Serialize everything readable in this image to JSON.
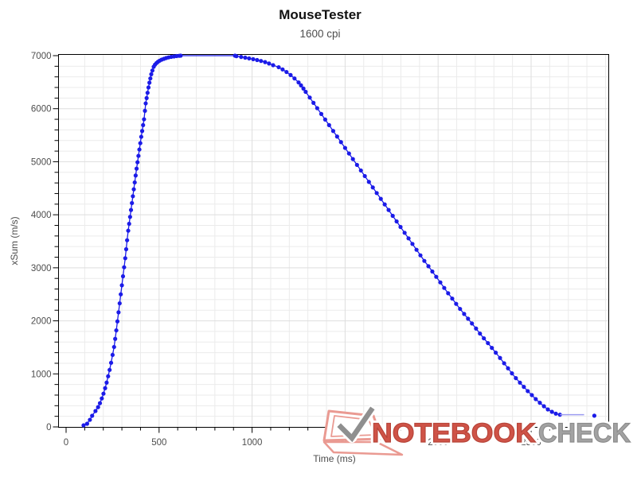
{
  "header": {
    "title": "MouseTester",
    "subtitle": "1600 cpi"
  },
  "watermark": {
    "brand_primary": "NOTEBOOK",
    "brand_secondary": "CHECK",
    "logo": "notebookcheck-laptop-checkmark-logo",
    "primary_color": "#cf5347",
    "primary_edge_color": "#b8453a",
    "secondary_color": "#a2a2a2",
    "secondary_edge_color": "#8c8c8c",
    "logo_outline_color": "#ea9a92",
    "checkmark_color": "#8f8f8f"
  },
  "chart_data": {
    "type": "line",
    "title": "MouseTester",
    "subtitle": "1600 cpi",
    "xlabel": "Time (ms)",
    "ylabel": "xSum (m/s)",
    "xlim": [
      0,
      2920
    ],
    "ylim": [
      0,
      7000
    ],
    "xticks_major": [
      0,
      500,
      1000,
      1500,
      2000,
      2500
    ],
    "xtick_minor_step": 100,
    "yticks_major": [
      0,
      1000,
      2000,
      3000,
      4000,
      5000,
      6000,
      7000
    ],
    "ytick_minor_step": 200,
    "grid": true,
    "legend": "none",
    "series_color": "#1b1be8",
    "tail_line_color": "#9b9bf0",
    "series": [
      {
        "name": "xSum",
        "style": "line+markers",
        "points": [
          [
            94,
            30
          ],
          [
            113,
            60
          ],
          [
            128,
            134
          ],
          [
            140,
            210
          ],
          [
            158,
            300
          ],
          [
            172,
            373
          ],
          [
            182,
            448
          ],
          [
            192,
            537
          ],
          [
            201,
            627
          ],
          [
            210,
            731
          ],
          [
            218,
            836
          ],
          [
            226,
            955
          ],
          [
            234,
            1075
          ],
          [
            242,
            1209
          ],
          [
            250,
            1358
          ],
          [
            258,
            1507
          ],
          [
            264,
            1660
          ],
          [
            270,
            1820
          ],
          [
            276,
            1990
          ],
          [
            282,
            2160
          ],
          [
            288,
            2330
          ],
          [
            294,
            2500
          ],
          [
            300,
            2670
          ],
          [
            306,
            2840
          ],
          [
            312,
            3010
          ],
          [
            318,
            3180
          ],
          [
            323,
            3350
          ],
          [
            328,
            3520
          ],
          [
            334,
            3700
          ],
          [
            339,
            3830
          ],
          [
            344,
            3960
          ],
          [
            349,
            4090
          ],
          [
            354,
            4220
          ],
          [
            359,
            4350
          ],
          [
            364,
            4480
          ],
          [
            369,
            4610
          ],
          [
            374,
            4740
          ],
          [
            379,
            4870
          ],
          [
            384,
            4990
          ],
          [
            389,
            5110
          ],
          [
            394,
            5230
          ],
          [
            399,
            5350
          ],
          [
            404,
            5470
          ],
          [
            409,
            5580
          ],
          [
            414,
            5690
          ],
          [
            419,
            5800
          ],
          [
            424,
            5960
          ],
          [
            428,
            6100
          ],
          [
            433,
            6200
          ],
          [
            438,
            6300
          ],
          [
            443,
            6400
          ],
          [
            448,
            6490
          ],
          [
            453,
            6570
          ],
          [
            458,
            6650
          ],
          [
            464,
            6720
          ],
          [
            471,
            6790
          ],
          [
            478,
            6830
          ],
          [
            486,
            6860
          ],
          [
            494,
            6885
          ],
          [
            503,
            6905
          ],
          [
            514,
            6925
          ],
          [
            526,
            6940
          ],
          [
            538,
            6955
          ],
          [
            551,
            6967
          ],
          [
            565,
            6977
          ],
          [
            580,
            6985
          ],
          [
            594,
            6992
          ],
          [
            608,
            6997
          ],
          [
            616,
            7000
          ],
          [
            908,
            7000
          ],
          [
            916,
            6990
          ],
          [
            941,
            6976
          ],
          [
            963,
            6962
          ],
          [
            984,
            6948
          ],
          [
            1006,
            6933
          ],
          [
            1027,
            6917
          ],
          [
            1048,
            6900
          ],
          [
            1070,
            6878
          ],
          [
            1091,
            6852
          ],
          [
            1113,
            6820
          ],
          [
            1143,
            6782
          ],
          [
            1164,
            6740
          ],
          [
            1185,
            6692
          ],
          [
            1207,
            6635
          ],
          [
            1228,
            6570
          ],
          [
            1250,
            6495
          ],
          [
            1263,
            6440
          ],
          [
            1276,
            6380
          ],
          [
            1288,
            6318
          ],
          [
            1310,
            6210
          ],
          [
            1330,
            6110
          ],
          [
            1350,
            6010
          ],
          [
            1372,
            5900
          ],
          [
            1393,
            5795
          ],
          [
            1414,
            5690
          ],
          [
            1436,
            5580
          ],
          [
            1457,
            5475
          ],
          [
            1478,
            5370
          ],
          [
            1500,
            5260
          ],
          [
            1521,
            5155
          ],
          [
            1542,
            5050
          ],
          [
            1564,
            4940
          ],
          [
            1585,
            4835
          ],
          [
            1606,
            4730
          ],
          [
            1628,
            4620
          ],
          [
            1649,
            4515
          ],
          [
            1670,
            4410
          ],
          [
            1692,
            4300
          ],
          [
            1713,
            4195
          ],
          [
            1734,
            4090
          ],
          [
            1756,
            3980
          ],
          [
            1777,
            3875
          ],
          [
            1798,
            3770
          ],
          [
            1820,
            3660
          ],
          [
            1841,
            3555
          ],
          [
            1862,
            3450
          ],
          [
            1884,
            3340
          ],
          [
            1905,
            3235
          ],
          [
            1926,
            3130
          ],
          [
            1948,
            3030
          ],
          [
            1969,
            2930
          ],
          [
            1990,
            2830
          ],
          [
            2012,
            2725
          ],
          [
            2033,
            2620
          ],
          [
            2054,
            2520
          ],
          [
            2076,
            2420
          ],
          [
            2097,
            2320
          ],
          [
            2118,
            2225
          ],
          [
            2140,
            2130
          ],
          [
            2161,
            2040
          ],
          [
            2182,
            1950
          ],
          [
            2204,
            1855
          ],
          [
            2225,
            1760
          ],
          [
            2246,
            1670
          ],
          [
            2268,
            1580
          ],
          [
            2289,
            1490
          ],
          [
            2310,
            1400
          ],
          [
            2333,
            1300
          ],
          [
            2355,
            1200
          ],
          [
            2376,
            1105
          ],
          [
            2397,
            1010
          ],
          [
            2418,
            920
          ],
          [
            2440,
            835
          ],
          [
            2461,
            755
          ],
          [
            2482,
            675
          ],
          [
            2504,
            600
          ],
          [
            2525,
            525
          ],
          [
            2547,
            455
          ],
          [
            2569,
            390
          ],
          [
            2590,
            330
          ],
          [
            2612,
            285
          ],
          [
            2633,
            250
          ],
          [
            2655,
            230
          ]
        ]
      },
      {
        "name": "xSum-tail-segment",
        "style": "line-light",
        "points": [
          [
            2655,
            230
          ],
          [
            2785,
            230
          ]
        ]
      },
      {
        "name": "xSum-isolated-point",
        "style": "markers",
        "points": [
          [
            2840,
            212
          ]
        ]
      }
    ]
  }
}
